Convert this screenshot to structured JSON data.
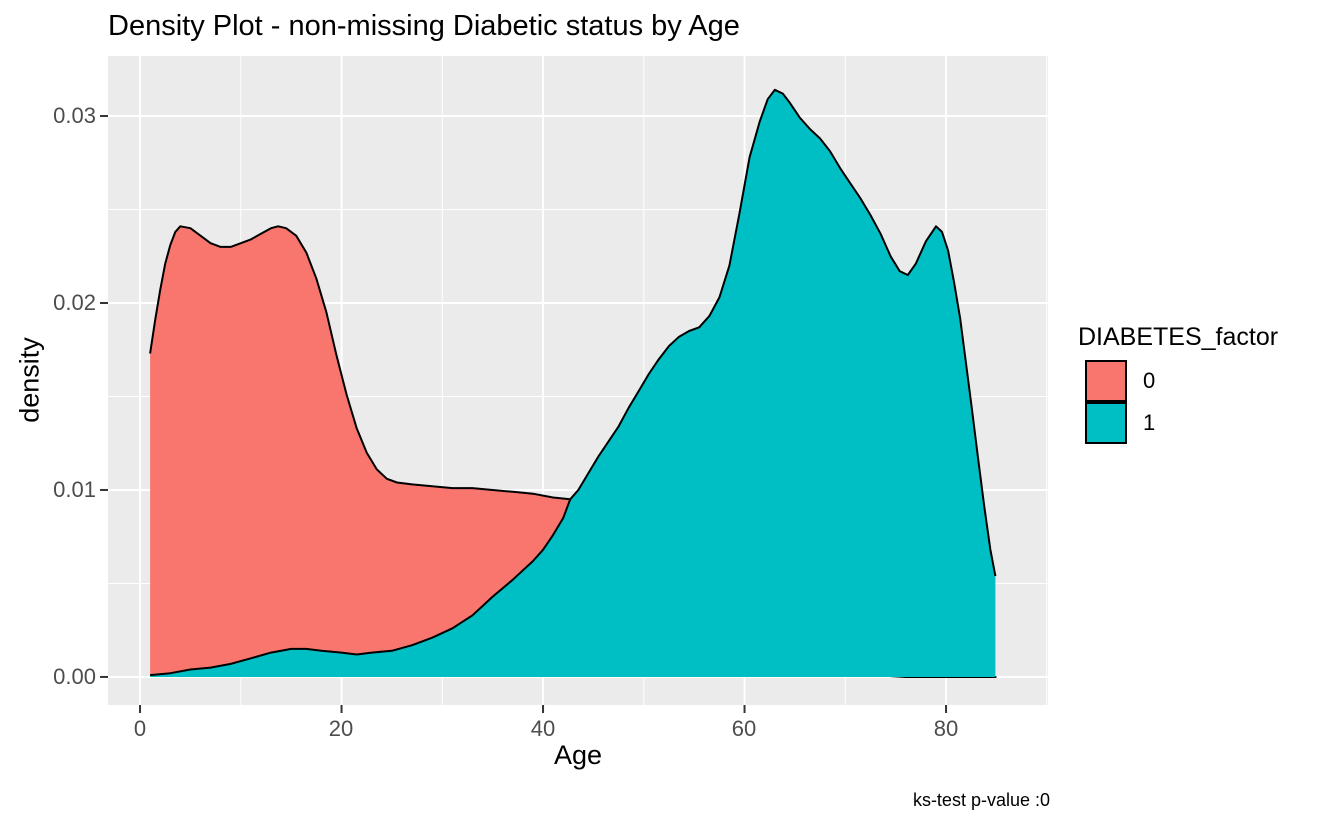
{
  "title": "Density Plot - non-missing Diabetic status by Age",
  "caption": "ks-test p-value :0",
  "axes": {
    "x_title": "Age",
    "y_title": "density"
  },
  "legend": {
    "title": "DIABETES_factor",
    "entries": [
      {
        "label": "0",
        "color": "#F8766D"
      },
      {
        "label": "1",
        "color": "#00BFC4"
      }
    ]
  },
  "colors": {
    "panel_background": "#EBEBEB",
    "gridline": "#FFFFFF",
    "tick_mark": "#333333",
    "tick_label": "#4D4D4D",
    "curve_outline": "#000000",
    "series_0_fill": "#F8766D",
    "series_1_fill": "#00BFC4"
  },
  "chart_data": {
    "type": "area",
    "title": "Density Plot - non-missing Diabetic status by Age",
    "xlabel": "Age",
    "ylabel": "density",
    "legend_title": "DIABETES_factor",
    "legend_position": "right",
    "grid": "major-minor-white-on-gray",
    "annotation": "ks-test p-value :0",
    "x_ticks": [
      0,
      20,
      40,
      60,
      80
    ],
    "x_tick_labels": [
      "0",
      "20",
      "40",
      "60",
      "80"
    ],
    "y_ticks": [
      0,
      0.01,
      0.02,
      0.03
    ],
    "y_tick_labels": [
      "0.00",
      "0.01",
      "0.02",
      "0.03"
    ],
    "x_minor": [
      10,
      30,
      50,
      70,
      90
    ],
    "y_minor": [
      0.005,
      0.015,
      0.025
    ],
    "xlim": [
      -3.18,
      90.12
    ],
    "ylim": [
      -0.0015,
      0.03321
    ],
    "series": [
      {
        "name": "0",
        "fill": "#F8766D",
        "outline": "#000000",
        "points": [
          [
            1,
            0.0173
          ],
          [
            1.5,
            0.0191
          ],
          [
            2,
            0.0207
          ],
          [
            2.5,
            0.0221
          ],
          [
            3,
            0.0231
          ],
          [
            3.5,
            0.0238
          ],
          [
            4,
            0.0241
          ],
          [
            5,
            0.024
          ],
          [
            6,
            0.0236
          ],
          [
            7,
            0.0232
          ],
          [
            8,
            0.023
          ],
          [
            9,
            0.023
          ],
          [
            10,
            0.0232
          ],
          [
            11,
            0.0234
          ],
          [
            12,
            0.0237
          ],
          [
            13,
            0.024
          ],
          [
            13.7,
            0.0241
          ],
          [
            14.5,
            0.024
          ],
          [
            15.5,
            0.0236
          ],
          [
            16.5,
            0.0227
          ],
          [
            17.5,
            0.0213
          ],
          [
            18.5,
            0.0195
          ],
          [
            19.5,
            0.0172
          ],
          [
            20.5,
            0.0151
          ],
          [
            21.5,
            0.0133
          ],
          [
            22.5,
            0.012
          ],
          [
            23.5,
            0.0111
          ],
          [
            24.5,
            0.0106
          ],
          [
            25.5,
            0.0104
          ],
          [
            27,
            0.0103
          ],
          [
            29,
            0.0102
          ],
          [
            31,
            0.0101
          ],
          [
            33,
            0.0101
          ],
          [
            35,
            0.01
          ],
          [
            37,
            0.0099
          ],
          [
            39,
            0.0098
          ],
          [
            41,
            0.0096
          ],
          [
            42.7,
            0.0095
          ],
          [
            44,
            0.0093
          ],
          [
            45,
            0.0091
          ],
          [
            46,
            0.0088
          ],
          [
            47,
            0.0084
          ],
          [
            48,
            0.0079
          ],
          [
            49,
            0.0073
          ],
          [
            50,
            0.0067
          ],
          [
            52,
            0.0054
          ],
          [
            54,
            0.0042
          ],
          [
            56,
            0.0031
          ],
          [
            58,
            0.0022
          ],
          [
            60,
            0.0015
          ],
          [
            62,
            0.001
          ],
          [
            64,
            0.0006
          ],
          [
            66,
            0.0004
          ],
          [
            68,
            0.0002
          ],
          [
            70,
            0.0001
          ],
          [
            73,
            0.0001
          ],
          [
            76,
            0.0
          ],
          [
            80,
            0.0
          ],
          [
            85,
            0.0
          ]
        ]
      },
      {
        "name": "1",
        "fill": "#00BFC4",
        "outline": "#000000",
        "points": [
          [
            1,
            0.0001
          ],
          [
            3,
            0.0002
          ],
          [
            5,
            0.0004
          ],
          [
            7,
            0.0005
          ],
          [
            9,
            0.0007
          ],
          [
            11,
            0.001
          ],
          [
            13,
            0.0013
          ],
          [
            15,
            0.0015
          ],
          [
            16.5,
            0.0015
          ],
          [
            18,
            0.0014
          ],
          [
            20,
            0.0013
          ],
          [
            21.5,
            0.0012
          ],
          [
            23,
            0.0013
          ],
          [
            25,
            0.0014
          ],
          [
            27,
            0.0017
          ],
          [
            29,
            0.0021
          ],
          [
            31,
            0.0026
          ],
          [
            33,
            0.0033
          ],
          [
            35,
            0.0043
          ],
          [
            37,
            0.0052
          ],
          [
            39,
            0.0062
          ],
          [
            40,
            0.0068
          ],
          [
            41,
            0.0076
          ],
          [
            42,
            0.0085
          ],
          [
            42.7,
            0.0095
          ],
          [
            43.5,
            0.01
          ],
          [
            44.5,
            0.0109
          ],
          [
            45.5,
            0.0118
          ],
          [
            46.5,
            0.0126
          ],
          [
            47.5,
            0.0134
          ],
          [
            48.5,
            0.0144
          ],
          [
            49.5,
            0.0153
          ],
          [
            50.5,
            0.0162
          ],
          [
            51.5,
            0.017
          ],
          [
            52.5,
            0.0177
          ],
          [
            53.5,
            0.0182
          ],
          [
            54.5,
            0.0185
          ],
          [
            55.5,
            0.0187
          ],
          [
            56.5,
            0.0193
          ],
          [
            57.5,
            0.0203
          ],
          [
            58.5,
            0.022
          ],
          [
            59.5,
            0.0248
          ],
          [
            60.5,
            0.0278
          ],
          [
            61.5,
            0.0297
          ],
          [
            62.3,
            0.0309
          ],
          [
            63,
            0.0314
          ],
          [
            63.8,
            0.0312
          ],
          [
            64.5,
            0.0307
          ],
          [
            65.5,
            0.0299
          ],
          [
            66.5,
            0.0293
          ],
          [
            67.5,
            0.0288
          ],
          [
            68.5,
            0.0281
          ],
          [
            69.5,
            0.0272
          ],
          [
            70.5,
            0.0264
          ],
          [
            71.5,
            0.0256
          ],
          [
            72.5,
            0.0247
          ],
          [
            73.5,
            0.0237
          ],
          [
            74.5,
            0.0225
          ],
          [
            75.4,
            0.0217
          ],
          [
            76.2,
            0.0215
          ],
          [
            77,
            0.0221
          ],
          [
            78,
            0.0233
          ],
          [
            79,
            0.0241
          ],
          [
            79.6,
            0.0238
          ],
          [
            80.2,
            0.0228
          ],
          [
            80.8,
            0.0211
          ],
          [
            81.4,
            0.0192
          ],
          [
            82,
            0.0167
          ],
          [
            82.6,
            0.0142
          ],
          [
            83.2,
            0.0116
          ],
          [
            83.8,
            0.0091
          ],
          [
            84.4,
            0.0068
          ],
          [
            84.9,
            0.0054
          ]
        ]
      }
    ]
  }
}
